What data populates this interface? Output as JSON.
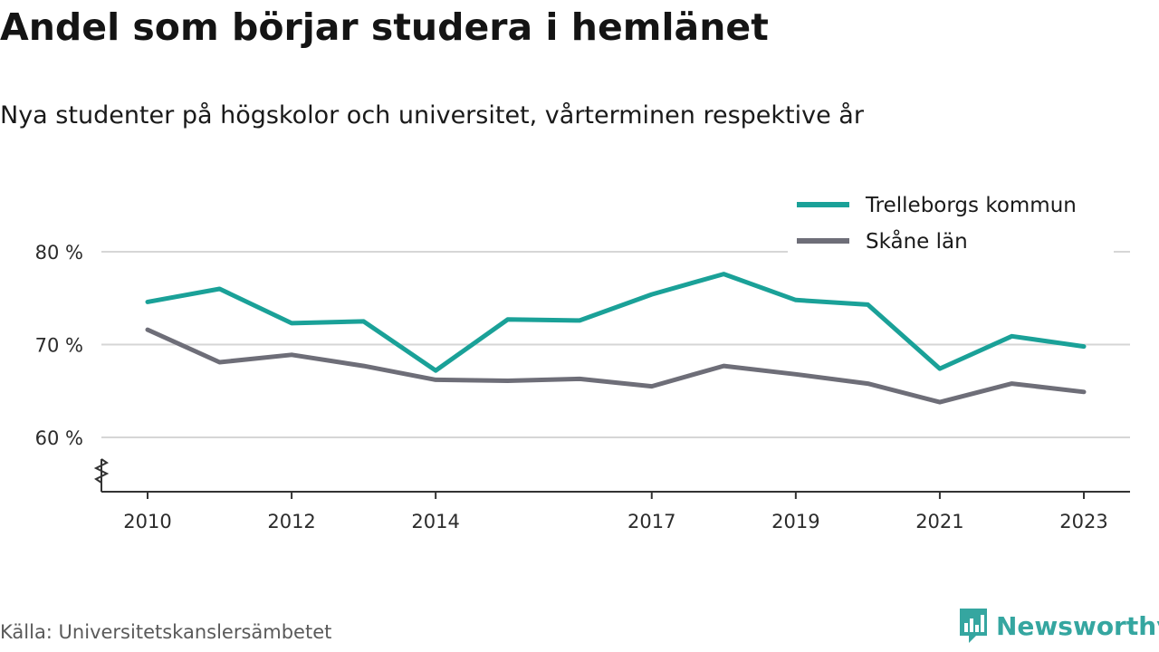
{
  "header": {
    "title": "Andel som börjar studera i hemlänet",
    "subtitle": "Nya studenter på högskolor och universitet, vårterminen respektive år"
  },
  "footer": {
    "source": "Källa: Universitetskanslersämbetet",
    "brand": "Newsworthy",
    "brand_color": "#35a6a0"
  },
  "chart_data": {
    "type": "line",
    "x": [
      2010,
      2011,
      2012,
      2013,
      2014,
      2015,
      2016,
      2017,
      2018,
      2019,
      2020,
      2021,
      2022,
      2023
    ],
    "series": [
      {
        "name": "Trelleborgs kommun",
        "color": "#1aa198",
        "values": [
          74.6,
          76.0,
          72.3,
          72.5,
          67.2,
          72.7,
          72.6,
          75.4,
          77.6,
          74.8,
          74.3,
          67.4,
          70.9,
          69.8
        ]
      },
      {
        "name": "Skåne län",
        "color": "#6e6e78",
        "values": [
          71.6,
          68.1,
          68.9,
          67.7,
          66.2,
          66.1,
          66.3,
          65.5,
          67.7,
          66.8,
          65.8,
          63.8,
          65.8,
          64.9
        ]
      }
    ],
    "x_ticks": [
      2010,
      2012,
      2014,
      2017,
      2019,
      2021,
      2023
    ],
    "x_tick_labels": [
      "2010",
      "2012",
      "2014",
      "2017",
      "2019",
      "2021",
      "2023"
    ],
    "y_ticks": [
      60,
      70,
      80
    ],
    "y_tick_labels": [
      "60 %",
      "70 %",
      "80 %"
    ],
    "ylim": [
      54,
      80
    ],
    "grid": "horizontal",
    "legend_position": "top-right"
  }
}
